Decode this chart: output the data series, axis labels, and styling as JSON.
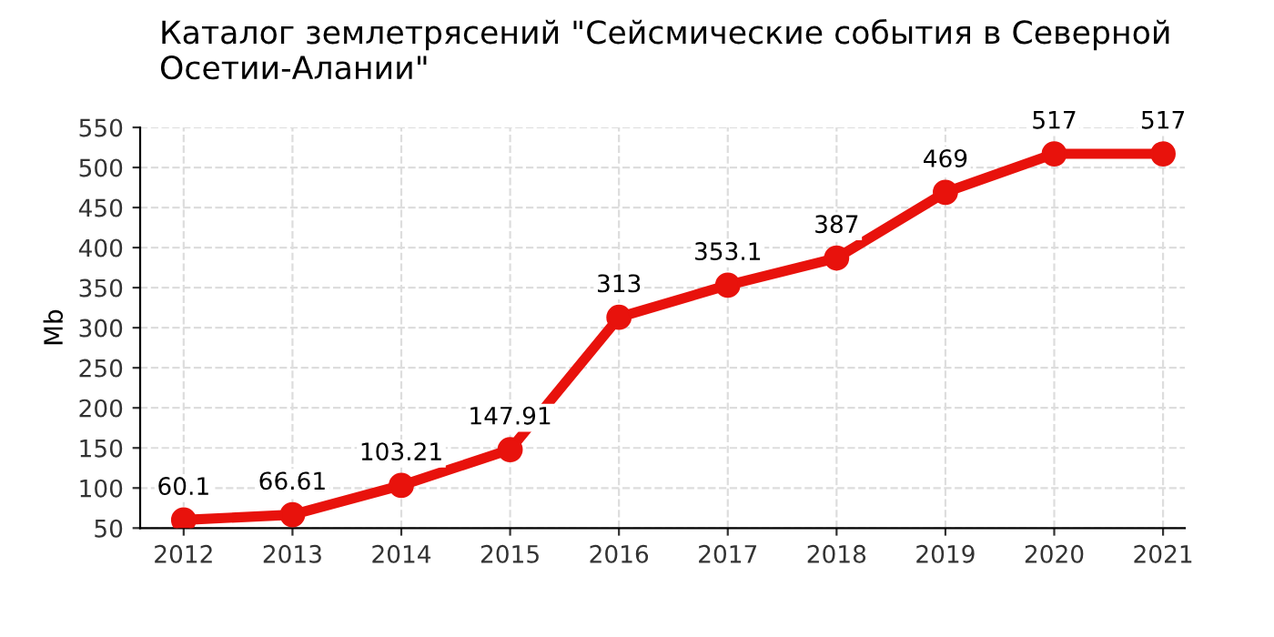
{
  "chart_data": {
    "type": "line",
    "title": "Каталог землетрясений \"Сейсмические события в Северной Осетии-Алании\"",
    "ylabel": "Mb",
    "x": [
      2012,
      2013,
      2014,
      2015,
      2016,
      2017,
      2018,
      2019,
      2020,
      2021
    ],
    "series": [
      {
        "color": "#e8120c",
        "values": [
          60.1,
          66.61,
          103.21,
          147.91,
          313,
          353.1,
          387,
          469,
          517,
          517
        ]
      }
    ],
    "xlim": [
      2011.6,
      2021.2
    ],
    "xticks": [
      2012,
      2013,
      2014,
      2015,
      2016,
      2017,
      2018,
      2019,
      2020,
      2021
    ],
    "ylim": [
      50,
      550
    ],
    "yticks": [
      50,
      100,
      150,
      200,
      250,
      300,
      350,
      400,
      450,
      500,
      550
    ],
    "grid": true,
    "marker": "circle",
    "line_style": "solid",
    "data_labels": true
  }
}
